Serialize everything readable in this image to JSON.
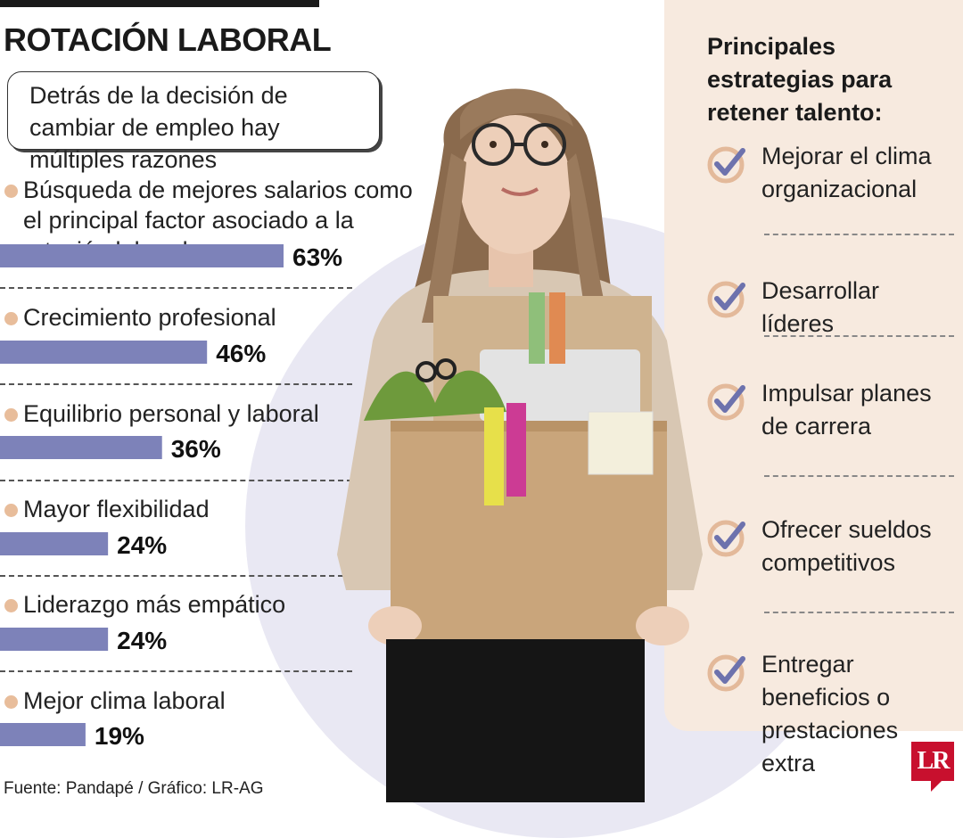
{
  "header": {
    "title": "ROTACIÓN LABORAL",
    "subtitle": "Detrás de la decisión de cambiar de empleo hay múltiples razones"
  },
  "strategies": {
    "title": "Principales estrategias para retener talento:",
    "items": [
      "Mejorar el clima organizacional",
      "Desarrollar líderes",
      "Impulsar planes de carrera",
      "Ofrecer sueldos competitivos",
      "Entregar beneficios o prestaciones extra"
    ]
  },
  "chart_data": {
    "type": "bar",
    "orientation": "horizontal",
    "categories": [
      "Búsqueda de mejores salarios como el principal factor asociado a la rotación laboral",
      "Crecimiento profesional",
      "Equilibrio personal y laboral",
      "Mayor flexibilidad",
      "Liderazgo más empático",
      "Mejor clima laboral"
    ],
    "values": [
      63,
      46,
      36,
      24,
      24,
      19
    ],
    "value_labels": [
      "63%",
      "46%",
      "36%",
      "24%",
      "24%",
      "19%"
    ],
    "unit": "%",
    "bar_color": "#7d82b9",
    "dot_color": "#e8bd9b"
  },
  "footer": {
    "source": "Fuente:  Pandapé / Gráfico: LR-AG",
    "logo": "LR"
  },
  "colors": {
    "bar": "#7d82b9",
    "panel": "#f7eadf",
    "circle": "#e9e8f3",
    "check": "#6d72ad",
    "check_ring": "#e3b99a",
    "logo": "#c8102e"
  }
}
